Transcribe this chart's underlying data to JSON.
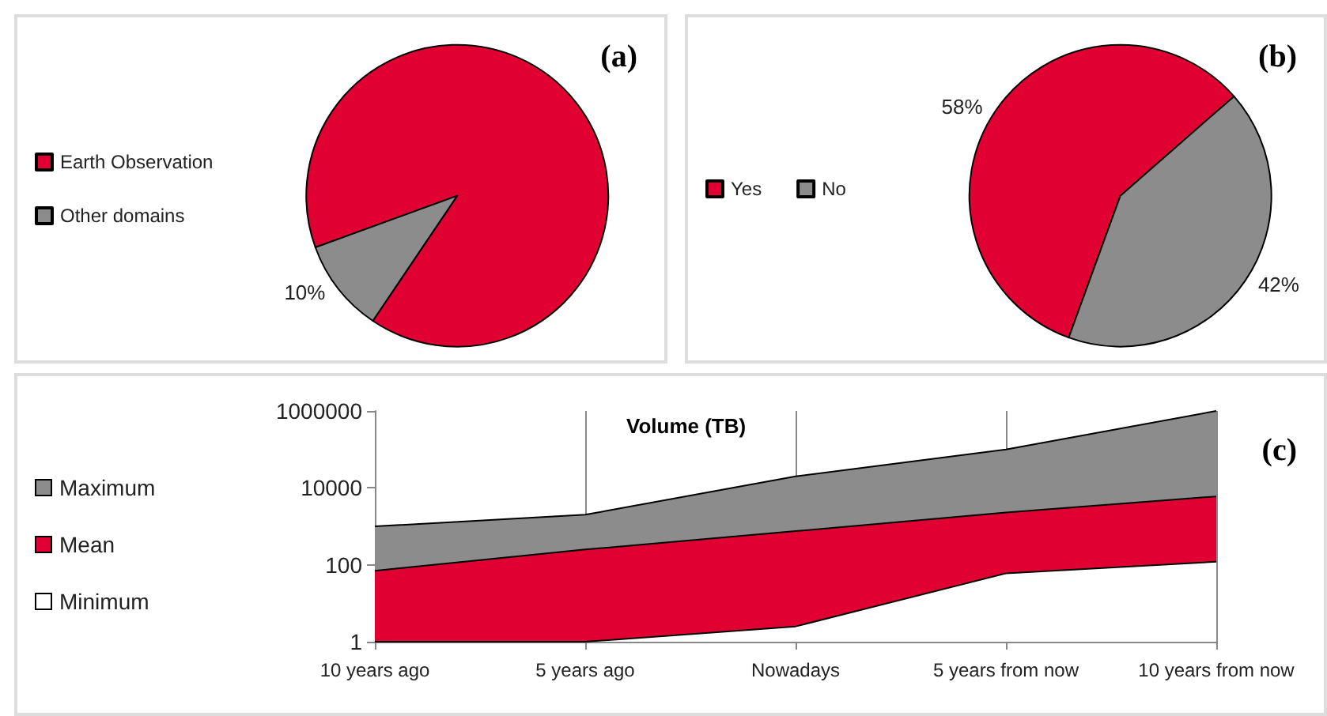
{
  "chart_data": [
    {
      "type": "pie",
      "title": "(a)",
      "categories": [
        "Earth Observation",
        "Other domains"
      ],
      "values": [
        90,
        10
      ],
      "colors": [
        "#e00032",
        "#8c8c8c"
      ],
      "value_labels": [
        null,
        "10%"
      ],
      "legend": "left"
    },
    {
      "type": "pie",
      "title": "(b)",
      "categories": [
        "Yes",
        "No"
      ],
      "values": [
        58,
        42
      ],
      "colors": [
        "#e00032",
        "#8c8c8c"
      ],
      "value_labels": [
        "58%",
        "42%"
      ],
      "legend": "left"
    },
    {
      "type": "area",
      "title": "Volume (TB)",
      "annotations": [
        "(c)"
      ],
      "categories": [
        "10 years ago",
        "5 years ago",
        "Nowadays",
        "5 years from now",
        "10 years from now"
      ],
      "series": [
        {
          "name": "Maximum",
          "color": "#8c8c8c",
          "values": [
            1000,
            2000,
            20000,
            100000,
            1000000
          ]
        },
        {
          "name": "Mean",
          "color": "#e00032",
          "values": [
            70,
            250,
            750,
            2300,
            6000
          ]
        },
        {
          "name": "Minimum",
          "color": "#ffffff",
          "values": [
            1,
            1,
            2.5,
            60,
            120
          ]
        }
      ],
      "log": true,
      "ylim": [
        1,
        1000000
      ],
      "yticks": [
        1,
        100,
        10000,
        1000000
      ],
      "grid": "x",
      "legend": "left"
    }
  ]
}
